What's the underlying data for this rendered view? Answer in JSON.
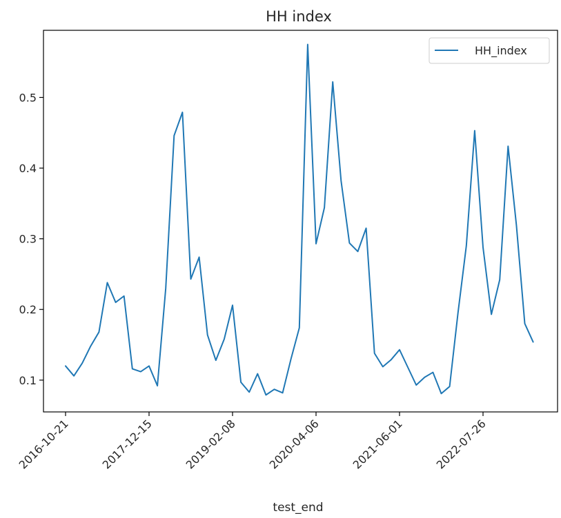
{
  "chart_data": {
    "type": "line",
    "title": "HH index",
    "xlabel": "test_end",
    "ylabel": "",
    "ylim": [
      0.055,
      0.595
    ],
    "yticks": [
      0.1,
      0.2,
      0.3,
      0.4,
      0.5
    ],
    "ytick_labels": [
      "0.1",
      "0.2",
      "0.3",
      "0.4",
      "0.5"
    ],
    "xtick_labels": [
      "2016-10-21",
      "2017-12-15",
      "2019-02-08",
      "2020-04-06",
      "2021-06-01",
      "2022-07-26"
    ],
    "xtick_index": [
      0,
      10,
      20,
      30,
      40,
      50
    ],
    "grid": false,
    "legend_position": "top-right",
    "line_color": "#1f77b4",
    "series": [
      {
        "name": "HH_index",
        "values": [
          0.12,
          0.106,
          0.124,
          0.148,
          0.168,
          0.238,
          0.21,
          0.219,
          0.116,
          0.112,
          0.12,
          0.092,
          0.23,
          0.446,
          0.479,
          0.243,
          0.274,
          0.164,
          0.128,
          0.158,
          0.206,
          0.097,
          0.083,
          0.109,
          0.079,
          0.087,
          0.082,
          0.13,
          0.174,
          0.575,
          0.293,
          0.344,
          0.522,
          0.382,
          0.294,
          0.282,
          0.315,
          0.138,
          0.119,
          0.129,
          0.143,
          0.118,
          0.093,
          0.104,
          0.111,
          0.081,
          0.091,
          0.195,
          0.29,
          0.453,
          0.288,
          0.193,
          0.242,
          0.431,
          0.319,
          0.18,
          0.154
        ]
      }
    ]
  }
}
